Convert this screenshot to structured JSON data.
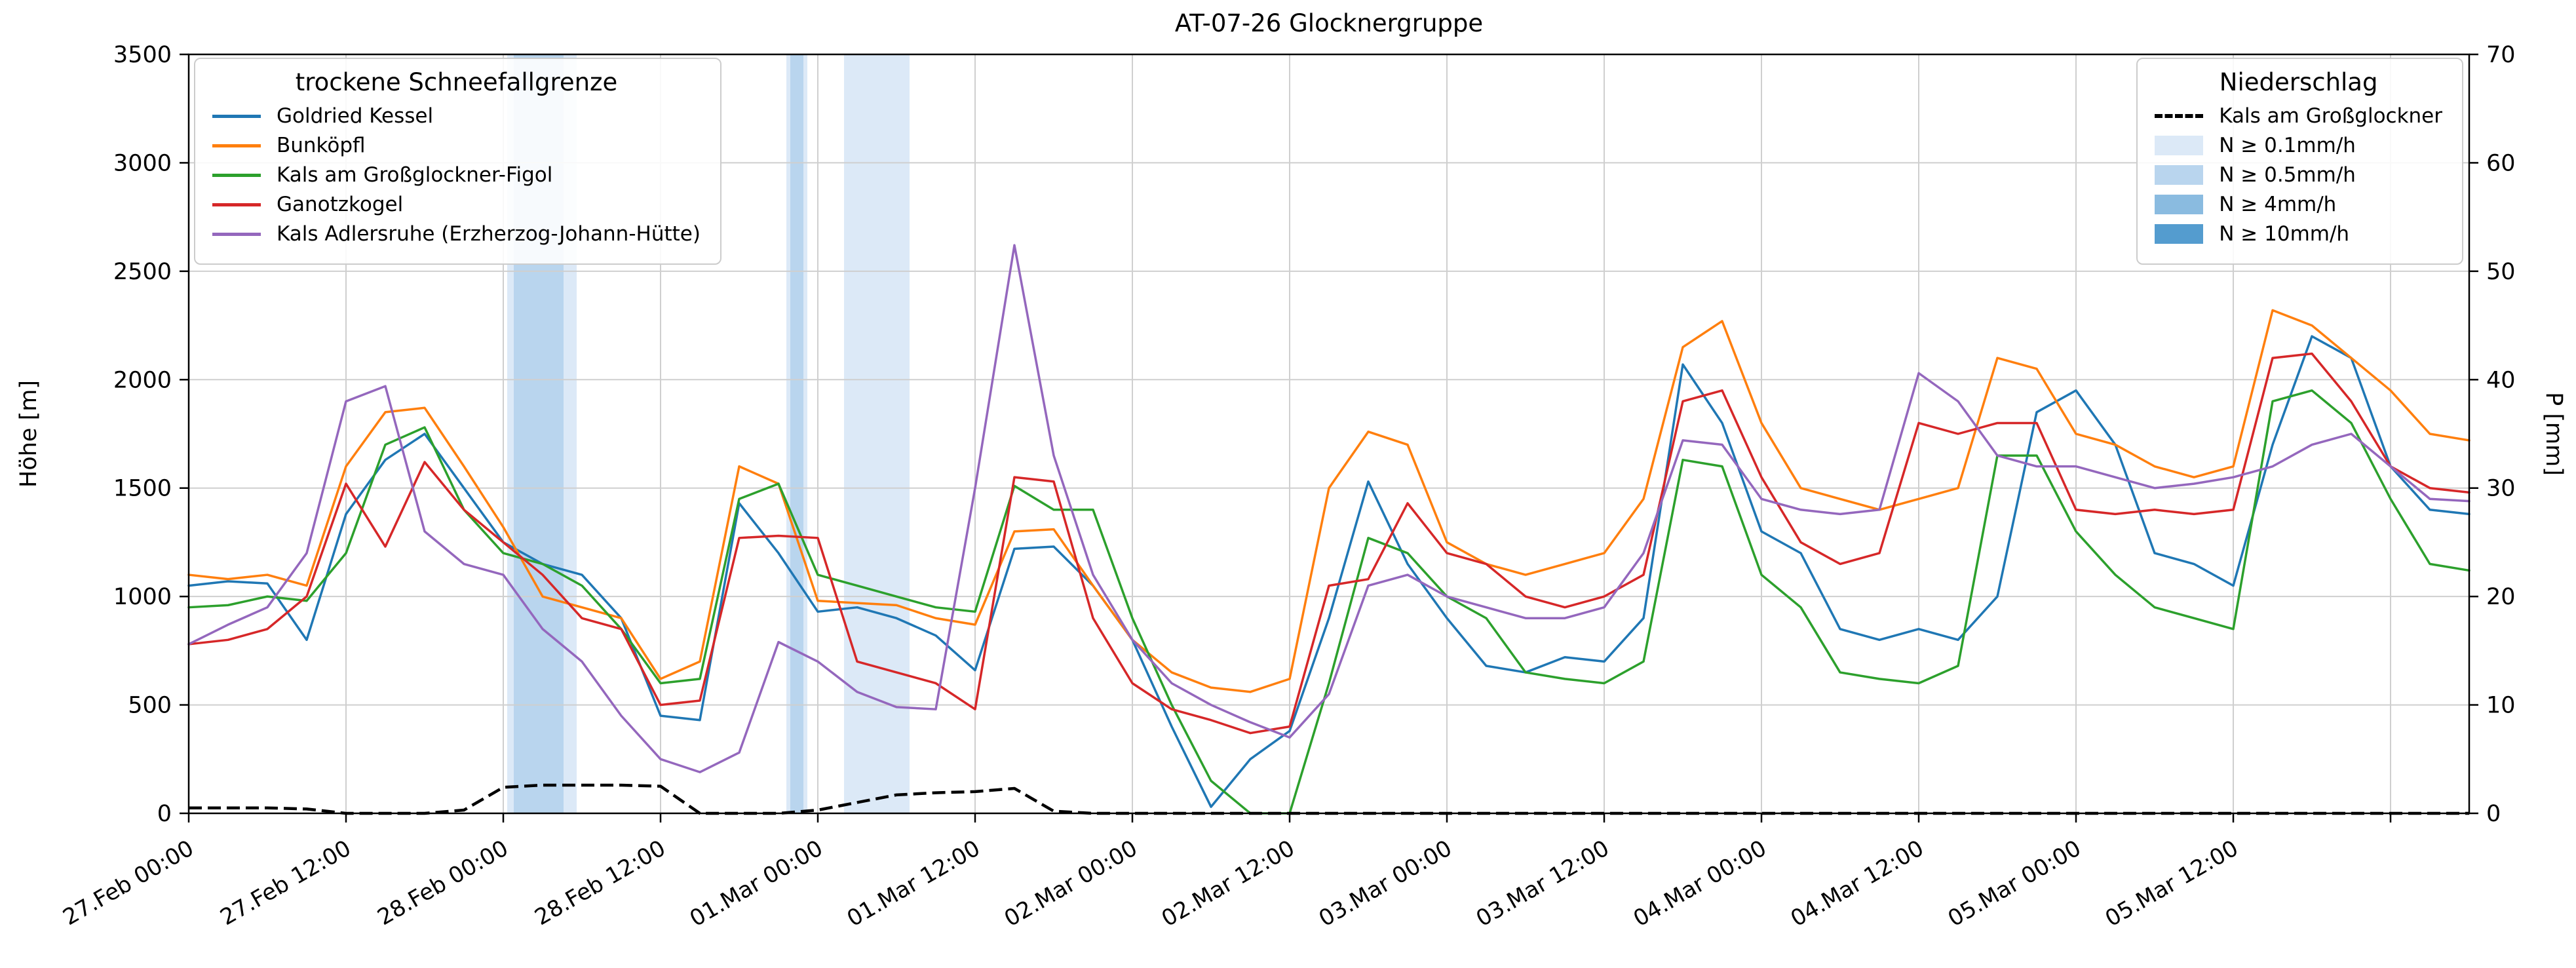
{
  "title": "AT-07-26 Glocknergruppe",
  "snowline_legend": {
    "title": "trockene Schneefallgrenze"
  },
  "precip_legend": {
    "title": "Niederschlag",
    "station": "Kals am Großglockner",
    "levels": [
      {
        "label": "N ≥ 0.1mm/h",
        "color": "#dce9f7"
      },
      {
        "label": "N ≥ 0.5mm/h",
        "color": "#b9d5ee"
      },
      {
        "label": "N ≥ 4mm/h",
        "color": "#8abbe0"
      },
      {
        "label": "N ≥ 10mm/h",
        "color": "#549ccf"
      }
    ]
  },
  "chart_data": {
    "type": "line",
    "title": "AT-07-26 Glocknergruppe",
    "ylabel_left": "Höhe [m]",
    "ylabel_right": "P [mm]",
    "ylim_left": [
      0,
      3500
    ],
    "ylim_right": [
      0,
      70
    ],
    "y_left_ticks": [
      0,
      500,
      1000,
      1500,
      2000,
      2500,
      3000,
      3500
    ],
    "y_right_ticks": [
      0,
      10,
      20,
      30,
      40,
      50,
      60,
      70
    ],
    "xlim_hours": [
      0,
      174
    ],
    "x_start": "27.Feb 00:00",
    "x_tick_hours": [
      0,
      12,
      24,
      36,
      48,
      60,
      72,
      84,
      96,
      108,
      120,
      132,
      144,
      156,
      168
    ],
    "x_tick_labels": [
      "27.Feb 00:00",
      "27.Feb 12:00",
      "28.Feb 00:00",
      "28.Feb 12:00",
      "01.Mar 00:00",
      "01.Mar 12:00",
      "02.Mar 00:00",
      "02.Mar 12:00",
      "03.Mar 00:00",
      "03.Mar 12:00",
      "04.Mar 00:00",
      "04.Mar 12:00",
      "05.Mar 00:00",
      "05.Mar 12:00",
      ""
    ],
    "grid": true,
    "x_hours": [
      0,
      3,
      6,
      9,
      12,
      15,
      18,
      21,
      24,
      27,
      30,
      33,
      36,
      39,
      42,
      45,
      48,
      51,
      54,
      57,
      60,
      63,
      66,
      69,
      72,
      75,
      78,
      81,
      84,
      87,
      90,
      93,
      96,
      99,
      102,
      105,
      108,
      111,
      114,
      117,
      120,
      123,
      126,
      129,
      132,
      135,
      138,
      141,
      144,
      147,
      150,
      153,
      156,
      159,
      162,
      165,
      168,
      171,
      174
    ],
    "series": [
      {
        "name": "Goldried Kessel",
        "color": "#1f77b4",
        "axis": "left",
        "values": [
          1050,
          1070,
          1060,
          800,
          1380,
          1630,
          1750,
          1500,
          1250,
          1150,
          1100,
          900,
          450,
          430,
          1430,
          1200,
          930,
          950,
          900,
          820,
          660,
          1220,
          1230,
          1050,
          800,
          400,
          30,
          250,
          380,
          900,
          1530,
          1150,
          900,
          680,
          650,
          720,
          700,
          900,
          2070,
          1800,
          1300,
          1200,
          850,
          800,
          850,
          800,
          1000,
          1850,
          1950,
          1700,
          1200,
          1150,
          1050,
          1700,
          2200,
          2100,
          1600,
          1400,
          1380
        ]
      },
      {
        "name": "Bunköpfl",
        "color": "#ff7f0e",
        "axis": "left",
        "values": [
          1100,
          1080,
          1100,
          1050,
          1600,
          1850,
          1870,
          1600,
          1320,
          1000,
          950,
          900,
          620,
          700,
          1600,
          1520,
          980,
          970,
          960,
          900,
          870,
          1300,
          1310,
          1050,
          800,
          650,
          580,
          560,
          620,
          1500,
          1760,
          1700,
          1250,
          1150,
          1100,
          1150,
          1200,
          1450,
          2150,
          2270,
          1800,
          1500,
          1450,
          1400,
          1450,
          1500,
          2100,
          2050,
          1750,
          1700,
          1600,
          1550,
          1600,
          2320,
          2250,
          2100,
          1950,
          1750,
          1720
        ]
      },
      {
        "name": "Kals am Großglockner-Figol",
        "color": "#2ca02c",
        "axis": "left",
        "values": [
          950,
          960,
          1000,
          980,
          1200,
          1700,
          1780,
          1400,
          1200,
          1150,
          1050,
          850,
          600,
          620,
          1450,
          1520,
          1100,
          1050,
          1000,
          950,
          930,
          1510,
          1400,
          1400,
          900,
          500,
          150,
          0,
          0,
          600,
          1270,
          1200,
          1000,
          900,
          650,
          620,
          600,
          700,
          1630,
          1600,
          1100,
          950,
          650,
          620,
          600,
          680,
          1650,
          1650,
          1300,
          1100,
          950,
          900,
          850,
          1900,
          1950,
          1800,
          1450,
          1150,
          1120
        ]
      },
      {
        "name": "Ganotzkogel",
        "color": "#d62728",
        "axis": "left",
        "values": [
          780,
          800,
          850,
          1000,
          1520,
          1230,
          1620,
          1400,
          1250,
          1100,
          900,
          850,
          500,
          520,
          1270,
          1280,
          1270,
          700,
          650,
          600,
          480,
          1550,
          1530,
          900,
          600,
          480,
          430,
          370,
          400,
          1050,
          1080,
          1430,
          1200,
          1150,
          1000,
          950,
          1000,
          1100,
          1900,
          1950,
          1550,
          1250,
          1150,
          1200,
          1800,
          1750,
          1800,
          1800,
          1400,
          1380,
          1400,
          1380,
          1400,
          2100,
          2120,
          1900,
          1600,
          1500,
          1480
        ]
      },
      {
        "name": "Kals Adlersruhe (Erzherzog-Johann-Hütte)",
        "color": "#9467bd",
        "axis": "left",
        "values": [
          780,
          870,
          950,
          1200,
          1900,
          1970,
          1300,
          1150,
          1100,
          850,
          700,
          450,
          250,
          190,
          280,
          790,
          700,
          560,
          490,
          480,
          1500,
          2620,
          1650,
          1100,
          800,
          600,
          500,
          420,
          350,
          550,
          1050,
          1100,
          1000,
          950,
          900,
          900,
          950,
          1200,
          1720,
          1700,
          1450,
          1400,
          1380,
          1400,
          2030,
          1900,
          1650,
          1600,
          1600,
          1550,
          1500,
          1520,
          1550,
          1600,
          1700,
          1750,
          1600,
          1450,
          1440
        ]
      }
    ],
    "precip_series": {
      "name": "Kals am Großglockner",
      "color": "#000000",
      "style": "dashed",
      "axis": "right",
      "values": [
        0.5,
        0.5,
        0.5,
        0.4,
        0,
        0,
        0,
        0.3,
        2.4,
        2.6,
        2.6,
        2.6,
        2.5,
        0,
        0,
        0,
        0.3,
        1.0,
        1.7,
        1.9,
        2.0,
        2.3,
        0.2,
        0,
        0,
        0,
        0,
        0,
        0,
        0,
        0,
        0,
        0,
        0,
        0,
        0,
        0,
        0,
        0,
        0,
        0,
        0,
        0,
        0,
        0,
        0,
        0,
        0,
        0,
        0,
        0,
        0,
        0,
        0,
        0,
        0,
        0,
        0,
        0
      ]
    },
    "precip_bands": [
      {
        "start": 24.3,
        "end": 29.6,
        "level": 1
      },
      {
        "start": 24.8,
        "end": 28.6,
        "level": 2
      },
      {
        "start": 45.6,
        "end": 47.2,
        "level": 1
      },
      {
        "start": 45.9,
        "end": 46.9,
        "level": 2
      },
      {
        "start": 50,
        "end": 55,
        "level": 1
      }
    ]
  }
}
